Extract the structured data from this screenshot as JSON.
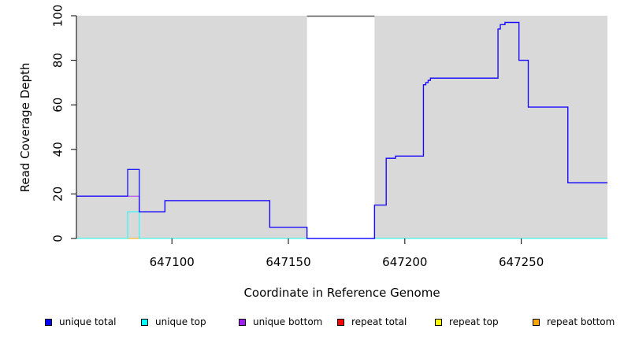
{
  "chart_data": {
    "type": "line",
    "title": "",
    "xlabel": "Coordinate in Reference Genome",
    "ylabel": "Read Coverage Depth",
    "xlim": [
      647059,
      647287
    ],
    "ylim": [
      0,
      100
    ],
    "xticks": [
      "647100",
      "647150",
      "647200",
      "647250"
    ],
    "xtick_values": [
      647100,
      647150,
      647200,
      647250
    ],
    "yticks": [
      "0",
      "20",
      "40",
      "60",
      "80",
      "100"
    ],
    "ytick_values": [
      0,
      20,
      40,
      60,
      80,
      100
    ],
    "plot_background": "#d9d9d9",
    "gap_region": {
      "x_start": 647158,
      "x_end": 647187,
      "color": "#ffffff"
    },
    "legend_placement": "bottom",
    "series": [
      {
        "name": "unique total",
        "color": "#0000ff",
        "x": [
          647059,
          647081,
          647081,
          647086,
          647086,
          647097,
          647097,
          647142,
          647142,
          647158,
          647158,
          647187,
          647187,
          647192,
          647192,
          647196,
          647196,
          647208,
          647208,
          647209,
          647209,
          647210,
          647210,
          647211,
          647211,
          647240,
          647240,
          647241,
          647241,
          647243,
          647243,
          647249,
          647249,
          647253,
          647253,
          647270,
          647270,
          647287
        ],
        "y": [
          19,
          19,
          31,
          31,
          12,
          12,
          17,
          17,
          5,
          5,
          0,
          0,
          15,
          15,
          36,
          36,
          37,
          37,
          69,
          69,
          70,
          70,
          71,
          71,
          72,
          72,
          94,
          94,
          96,
          96,
          97,
          97,
          80,
          80,
          59,
          59,
          25,
          25
        ]
      },
      {
        "name": "unique top",
        "color": "#00ffff",
        "x": [
          647059,
          647081,
          647081,
          647086,
          647086,
          647287
        ],
        "y": [
          0,
          0,
          12,
          12,
          0,
          0
        ]
      },
      {
        "name": "unique bottom",
        "color": "#a020f0",
        "x": [
          647059,
          647081,
          647081,
          647086,
          647086,
          647097,
          647097,
          647142,
          647142,
          647158,
          647158,
          647187,
          647187,
          647192,
          647192,
          647196,
          647196,
          647208,
          647208,
          647209,
          647209,
          647210,
          647210,
          647211,
          647211,
          647240,
          647240,
          647241,
          647241,
          647243,
          647243,
          647249,
          647249,
          647253,
          647253,
          647270,
          647270,
          647287
        ],
        "y": [
          19,
          19,
          19,
          19,
          12,
          12,
          17,
          17,
          5,
          5,
          0,
          0,
          15,
          15,
          36,
          36,
          37,
          37,
          69,
          69,
          70,
          70,
          71,
          71,
          72,
          72,
          94,
          94,
          96,
          96,
          97,
          97,
          80,
          80,
          59,
          59,
          25,
          25
        ]
      },
      {
        "name": "repeat total",
        "color": "#ff0000",
        "x": [
          647059,
          647287
        ],
        "y": [
          0,
          0
        ]
      },
      {
        "name": "repeat top",
        "color": "#ffff00",
        "x": [
          647059,
          647287
        ],
        "y": [
          0,
          0
        ]
      },
      {
        "name": "repeat bottom",
        "color": "#ffa500",
        "x": [
          647059,
          647287
        ],
        "y": [
          0,
          0
        ]
      }
    ]
  },
  "legend": {
    "items": [
      {
        "label": "unique total",
        "color": "#0000ff"
      },
      {
        "label": "unique top",
        "color": "#00ffff"
      },
      {
        "label": "unique bottom",
        "color": "#a020f0"
      },
      {
        "label": "repeat total",
        "color": "#ff0000"
      },
      {
        "label": "repeat top",
        "color": "#ffff00"
      },
      {
        "label": "repeat bottom",
        "color": "#ffa500"
      }
    ]
  }
}
